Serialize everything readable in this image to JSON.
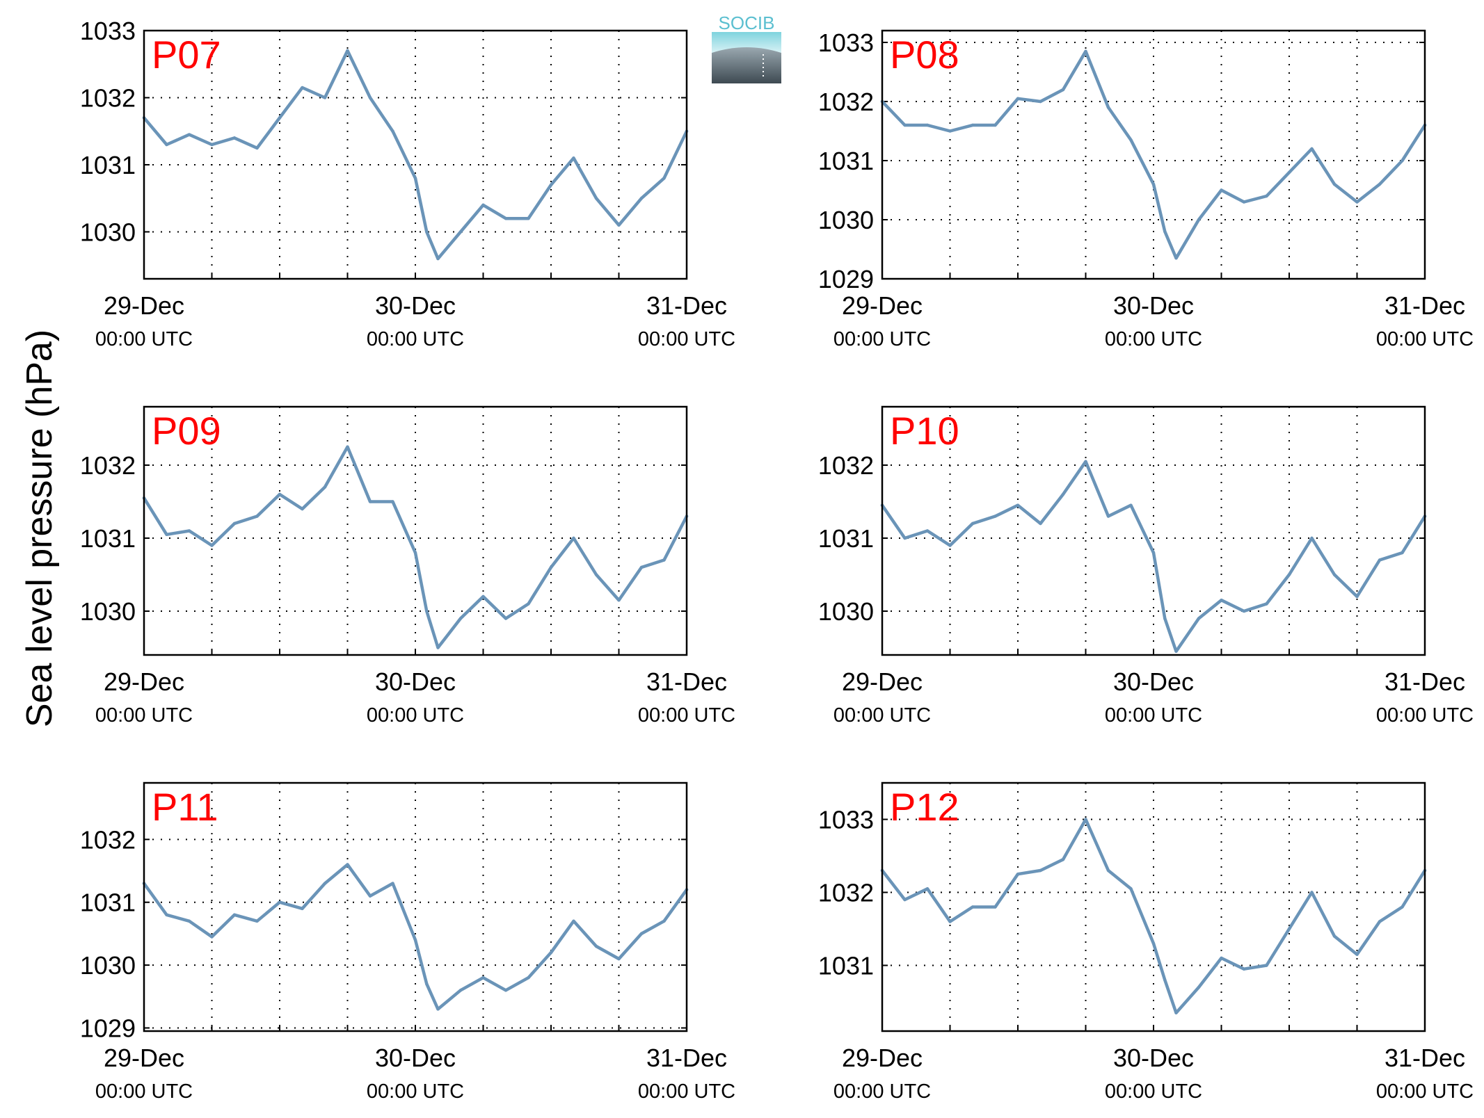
{
  "ylabel": "Sea level pressure (hPa)",
  "logo": {
    "text": "SOCIB",
    "text_color": "#5bbfd0",
    "bg_top": "#9aa8b0",
    "bg_bottom": "#3e4a52"
  },
  "colors": {
    "line": "#6a94b8",
    "panel_label": "#ff0000",
    "grid": "#000000"
  },
  "x_ticks": [
    {
      "date": "29-Dec",
      "time": "00:00 UTC"
    },
    {
      "date": "30-Dec",
      "time": "00:00 UTC"
    },
    {
      "date": "31-Dec",
      "time": "00:00 UTC"
    }
  ],
  "chart_data": [
    {
      "type": "line",
      "title": "P07",
      "xlabel": "",
      "ylabel": "Sea level pressure (hPa)",
      "xlim": [
        "29-Dec 00:00",
        "31-Dec 00:00"
      ],
      "ylim": [
        1029.3,
        1033.0
      ],
      "yticks": [
        1030,
        1031,
        1032,
        1033
      ],
      "grid": true,
      "x_hours": [
        0,
        2,
        4,
        6,
        8,
        10,
        12,
        14,
        16,
        18,
        20,
        22,
        24,
        25,
        26,
        28,
        30,
        32,
        34,
        36,
        38,
        40,
        42,
        44,
        46,
        48
      ],
      "series": [
        {
          "values": [
            1031.7,
            1031.3,
            1031.45,
            1031.3,
            1031.4,
            1031.25,
            1031.7,
            1032.15,
            1032.0,
            1032.7,
            1032.0,
            1031.5,
            1030.8,
            1030.0,
            1029.6,
            1030.0,
            1030.4,
            1030.2,
            1030.2,
            1030.7,
            1031.1,
            1030.5,
            1030.1,
            1030.5,
            1030.8,
            1031.5
          ]
        }
      ]
    },
    {
      "type": "line",
      "title": "P08",
      "xlabel": "",
      "ylabel": "Sea level pressure (hPa)",
      "xlim": [
        "29-Dec 00:00",
        "31-Dec 00:00"
      ],
      "ylim": [
        1029.0,
        1033.2
      ],
      "yticks": [
        1029,
        1030,
        1031,
        1032,
        1033
      ],
      "grid": true,
      "x_hours": [
        0,
        2,
        4,
        6,
        8,
        10,
        12,
        14,
        16,
        18,
        20,
        22,
        24,
        25,
        26,
        28,
        30,
        32,
        34,
        36,
        38,
        40,
        42,
        44,
        46,
        48
      ],
      "series": [
        {
          "values": [
            1032.0,
            1031.6,
            1031.6,
            1031.5,
            1031.6,
            1031.6,
            1032.05,
            1032.0,
            1032.2,
            1032.85,
            1031.9,
            1031.35,
            1030.6,
            1029.8,
            1029.35,
            1030.0,
            1030.5,
            1030.3,
            1030.4,
            1030.8,
            1031.2,
            1030.6,
            1030.3,
            1030.6,
            1031.0,
            1031.6
          ]
        }
      ]
    },
    {
      "type": "line",
      "title": "P09",
      "xlabel": "",
      "ylabel": "Sea level pressure (hPa)",
      "xlim": [
        "29-Dec 00:00",
        "31-Dec 00:00"
      ],
      "ylim": [
        1029.4,
        1032.8
      ],
      "yticks": [
        1030,
        1031,
        1032
      ],
      "grid": true,
      "x_hours": [
        0,
        2,
        4,
        6,
        8,
        10,
        12,
        14,
        16,
        18,
        20,
        22,
        24,
        25,
        26,
        28,
        30,
        32,
        34,
        36,
        38,
        40,
        42,
        44,
        46,
        48
      ],
      "series": [
        {
          "values": [
            1031.55,
            1031.05,
            1031.1,
            1030.9,
            1031.2,
            1031.3,
            1031.6,
            1031.4,
            1031.7,
            1032.25,
            1031.5,
            1031.5,
            1030.8,
            1030.0,
            1029.5,
            1029.9,
            1030.2,
            1029.9,
            1030.1,
            1030.6,
            1031.0,
            1030.5,
            1030.15,
            1030.6,
            1030.7,
            1031.3
          ]
        }
      ]
    },
    {
      "type": "line",
      "title": "P10",
      "xlabel": "",
      "ylabel": "Sea level pressure (hPa)",
      "xlim": [
        "29-Dec 00:00",
        "31-Dec 00:00"
      ],
      "ylim": [
        1029.4,
        1032.8
      ],
      "yticks": [
        1030,
        1031,
        1032
      ],
      "grid": true,
      "x_hours": [
        0,
        2,
        4,
        6,
        8,
        10,
        12,
        14,
        16,
        18,
        20,
        22,
        24,
        25,
        26,
        28,
        30,
        32,
        34,
        36,
        38,
        40,
        42,
        44,
        46,
        48
      ],
      "series": [
        {
          "values": [
            1031.45,
            1031.0,
            1031.1,
            1030.9,
            1031.2,
            1031.3,
            1031.45,
            1031.2,
            1031.6,
            1032.05,
            1031.3,
            1031.45,
            1030.8,
            1029.9,
            1029.45,
            1029.9,
            1030.15,
            1030.0,
            1030.1,
            1030.5,
            1031.0,
            1030.5,
            1030.2,
            1030.7,
            1030.8,
            1031.3
          ]
        }
      ]
    },
    {
      "type": "line",
      "title": "P11",
      "xlabel": "",
      "ylabel": "Sea level pressure (hPa)",
      "xlim": [
        "29-Dec 00:00",
        "31-Dec 00:00"
      ],
      "ylim": [
        1028.95,
        1032.9
      ],
      "yticks": [
        1029,
        1030,
        1031,
        1032
      ],
      "grid": true,
      "x_hours": [
        0,
        2,
        4,
        6,
        8,
        10,
        12,
        14,
        16,
        18,
        20,
        22,
        24,
        25,
        26,
        28,
        30,
        32,
        34,
        36,
        38,
        40,
        42,
        44,
        46,
        48
      ],
      "series": [
        {
          "values": [
            1031.3,
            1030.8,
            1030.7,
            1030.45,
            1030.8,
            1030.7,
            1031.0,
            1030.9,
            1031.3,
            1031.6,
            1031.1,
            1031.3,
            1030.4,
            1029.7,
            1029.3,
            1029.6,
            1029.8,
            1029.6,
            1029.8,
            1030.2,
            1030.7,
            1030.3,
            1030.1,
            1030.5,
            1030.7,
            1031.2
          ]
        }
      ]
    },
    {
      "type": "line",
      "title": "P12",
      "xlabel": "",
      "ylabel": "Sea level pressure (hPa)",
      "xlim": [
        "29-Dec 00:00",
        "31-Dec 00:00"
      ],
      "ylim": [
        1030.1,
        1033.5
      ],
      "yticks": [
        1031,
        1032,
        1033
      ],
      "grid": true,
      "x_hours": [
        0,
        2,
        4,
        6,
        8,
        10,
        12,
        14,
        16,
        18,
        20,
        22,
        24,
        25,
        26,
        28,
        30,
        32,
        34,
        36,
        38,
        40,
        42,
        44,
        46,
        48
      ],
      "series": [
        {
          "values": [
            1032.3,
            1031.9,
            1032.05,
            1031.6,
            1031.8,
            1031.8,
            1032.25,
            1032.3,
            1032.45,
            1033.0,
            1032.3,
            1032.05,
            1031.3,
            1030.8,
            1030.35,
            1030.7,
            1031.1,
            1030.95,
            1031.0,
            1031.5,
            1032.0,
            1031.4,
            1031.15,
            1031.6,
            1031.8,
            1032.3
          ]
        }
      ]
    }
  ]
}
